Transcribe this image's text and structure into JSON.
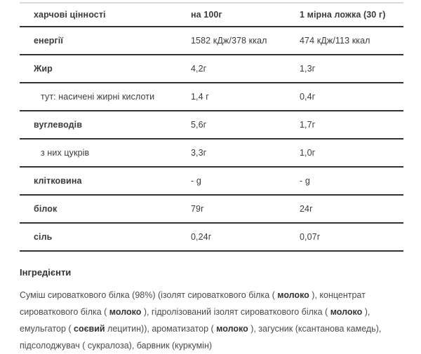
{
  "colors": {
    "background": "#ffffff",
    "border_dark": "#333333",
    "border_light": "#d9d9d9",
    "text": "#3b3b3b",
    "paragraph_text": "#4a4a4a"
  },
  "table": {
    "headers": [
      "харчові цінності",
      "на 100г",
      "1 мірна ложка (30 г)"
    ],
    "rows": [
      {
        "label": "енергії",
        "bold": true,
        "indent": false,
        "per100": "1582 кДж/378 ккал",
        "spoon": "474 кДж/113 ккал"
      },
      {
        "label": "Жир",
        "bold": true,
        "indent": false,
        "per100": "4,2г",
        "spoon": "1,3г"
      },
      {
        "label": "тут: насичені жирні кислоти",
        "bold": false,
        "indent": true,
        "per100": "1,4 г",
        "spoon": "0,4г"
      },
      {
        "label": "вуглеводів",
        "bold": true,
        "indent": false,
        "per100": "5,6г",
        "spoon": "1,7г"
      },
      {
        "label": "з них цукрів",
        "bold": false,
        "indent": true,
        "per100": "3,3г",
        "spoon": "1,0г"
      },
      {
        "label": "клітковина",
        "bold": true,
        "indent": false,
        "per100": "- g",
        "spoon": "- g"
      },
      {
        "label": "білок",
        "bold": true,
        "indent": false,
        "per100": "79г",
        "spoon": "24г"
      },
      {
        "label": "сіль",
        "bold": true,
        "indent": false,
        "per100": "0,24г",
        "spoon": "0,07г"
      }
    ]
  },
  "ingredients": {
    "heading": "Інгредієнти",
    "segments": [
      {
        "text": "Суміш сироваткового білка (98%) (ізолят сироваткового білка ( ",
        "bold": false
      },
      {
        "text": "молоко",
        "bold": true
      },
      {
        "text": " ), концентрат сироваткового білка ( ",
        "bold": false
      },
      {
        "text": "молоко",
        "bold": true
      },
      {
        "text": " ), гідролізований ізолят сироваткового білка ( ",
        "bold": false
      },
      {
        "text": "молоко",
        "bold": true
      },
      {
        "text": " ), емульгатор ( ",
        "bold": false
      },
      {
        "text": "соєвий",
        "bold": true
      },
      {
        "text": " лецитин)), ароматизатор ( ",
        "bold": false
      },
      {
        "text": "молоко",
        "bold": true
      },
      {
        "text": " ), загусник (ксантанова камедь), підсолоджувач ( сукралоза), барвник (куркумін)",
        "bold": false
      }
    ]
  }
}
